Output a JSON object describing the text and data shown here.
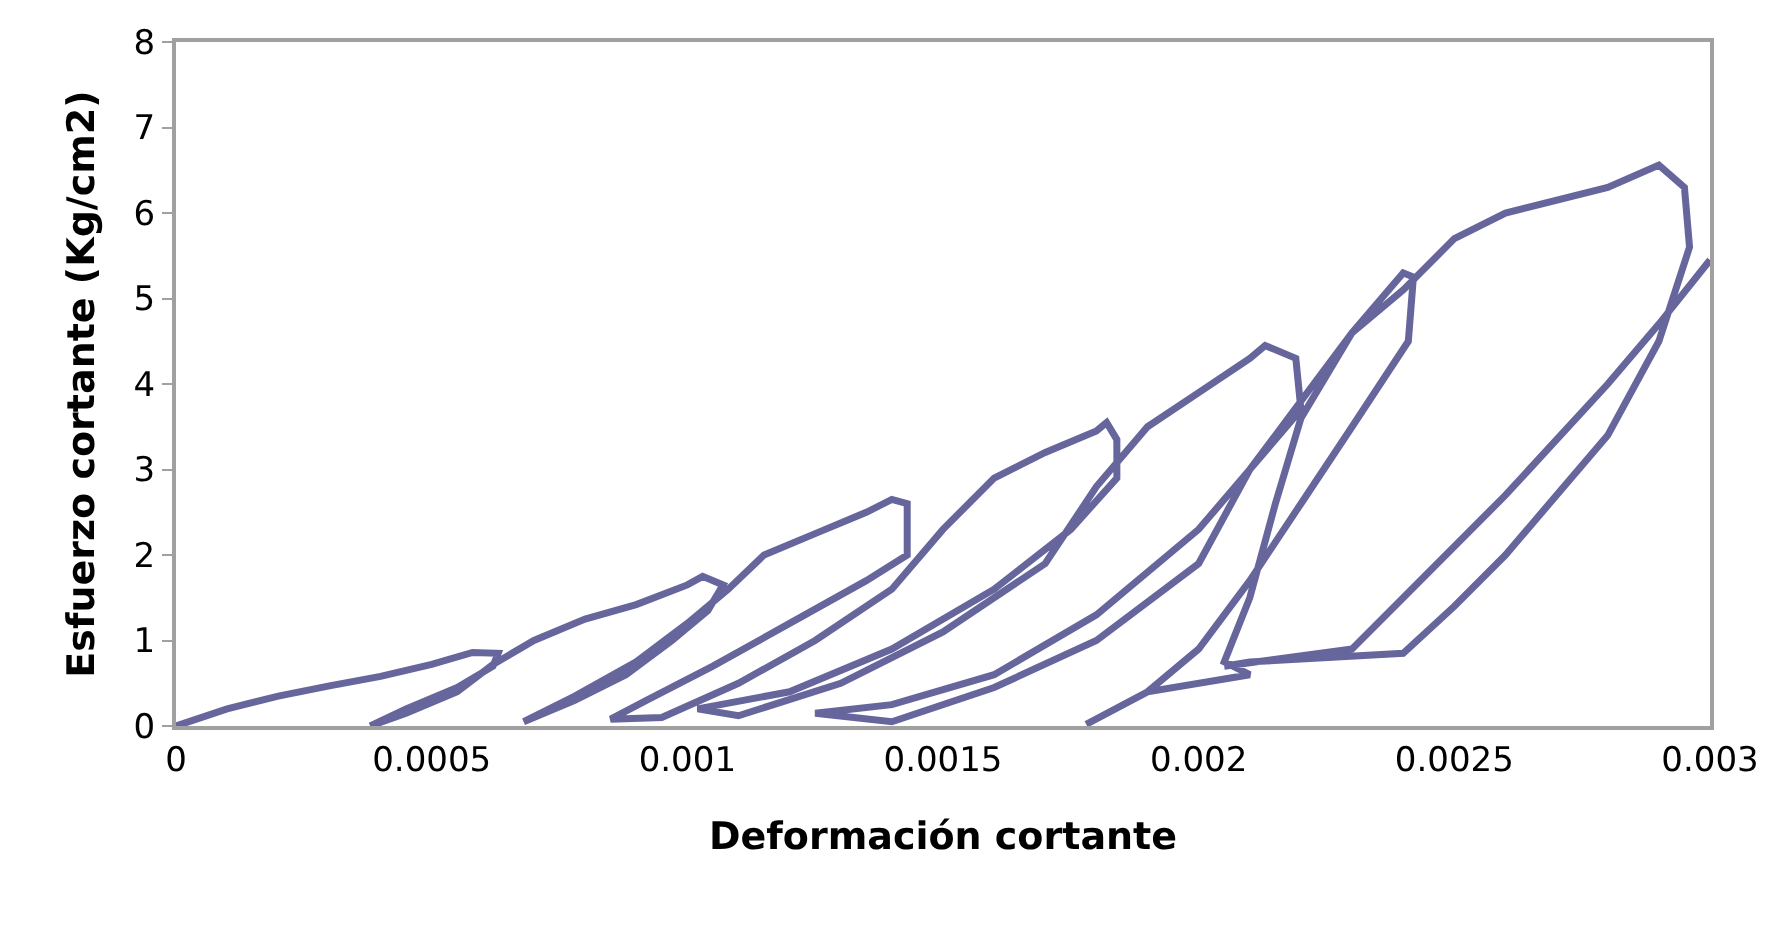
{
  "chart_data": {
    "type": "line",
    "xlabel": "Deformación cortante",
    "ylabel": "Esfuerzo cortante (Kg/cm2)",
    "xlim": [
      0,
      0.003
    ],
    "ylim": [
      0,
      8
    ],
    "xticks": [
      0,
      0.0005,
      0.001,
      0.0015,
      0.002,
      0.0025,
      0.003
    ],
    "yticks": [
      0,
      1,
      2,
      3,
      4,
      5,
      6,
      7,
      8
    ],
    "marker": "none",
    "line_style": "solid",
    "series": [
      {
        "color": "#66669c",
        "x": [
          0,
          0.0001,
          0.0002,
          0.0003,
          0.0004,
          0.0005,
          0.00058,
          0.00063,
          0.00062,
          0.00055,
          0.00045,
          0.00038,
          0.00045,
          0.00055,
          0.00062,
          0.0007,
          0.0008,
          0.0009,
          0.001,
          0.00103,
          0.00107,
          0.00104,
          0.00097,
          0.00088,
          0.00078,
          0.00068,
          0.00078,
          0.0009,
          0.001,
          0.00108,
          0.00115,
          0.00125,
          0.00135,
          0.0014,
          0.00143,
          0.00143,
          0.00135,
          0.0012,
          0.00105,
          0.00092,
          0.00085,
          0.00095,
          0.0011,
          0.00125,
          0.0014,
          0.0015,
          0.0016,
          0.0017,
          0.0018,
          0.00182,
          0.00184,
          0.00184,
          0.00175,
          0.0016,
          0.0014,
          0.0012,
          0.00102,
          0.0011,
          0.0013,
          0.0015,
          0.0017,
          0.0018,
          0.0019,
          0.002,
          0.0021,
          0.00213,
          0.00219,
          0.0022,
          0.0021,
          0.002,
          0.0018,
          0.0016,
          0.0014,
          0.00125,
          0.0014,
          0.0016,
          0.0018,
          0.002,
          0.0021,
          0.0022,
          0.0023,
          0.0024,
          0.00242,
          0.00241,
          0.0023,
          0.0022,
          0.0021,
          0.002,
          0.0019,
          0.00178,
          0.0019,
          0.0021,
          0.00205,
          0.0021,
          0.00215,
          0.0022,
          0.0023,
          0.0024,
          0.0025,
          0.0026,
          0.0028,
          0.0029,
          0.00295,
          0.00296,
          0.0029,
          0.0028,
          0.0026,
          0.0025,
          0.0024,
          0.0021,
          0.00205,
          0.0023,
          0.0024,
          0.0026,
          0.0028,
          0.0029,
          0.003
        ],
        "values": [
          0,
          0.2,
          0.35,
          0.47,
          0.58,
          0.72,
          0.86,
          0.85,
          0.7,
          0.45,
          0.2,
          0,
          0.15,
          0.4,
          0.72,
          1.0,
          1.25,
          1.42,
          1.65,
          1.75,
          1.65,
          1.35,
          1.0,
          0.6,
          0.3,
          0.05,
          0.35,
          0.75,
          1.2,
          1.6,
          2.0,
          2.25,
          2.5,
          2.65,
          2.6,
          2.0,
          1.7,
          1.2,
          0.7,
          0.3,
          0.08,
          0.1,
          0.5,
          1.0,
          1.6,
          2.3,
          2.9,
          3.2,
          3.45,
          3.55,
          3.35,
          2.9,
          2.3,
          1.6,
          0.9,
          0.4,
          0.2,
          0.12,
          0.5,
          1.1,
          1.9,
          2.8,
          3.5,
          3.9,
          4.3,
          4.45,
          4.3,
          3.7,
          3.0,
          2.3,
          1.3,
          0.6,
          0.25,
          0.15,
          0.05,
          0.45,
          1.0,
          1.9,
          3.0,
          3.8,
          4.6,
          5.3,
          5.25,
          4.5,
          3.5,
          2.6,
          1.7,
          0.9,
          0.4,
          0.02,
          0.4,
          0.6,
          0.75,
          1.5,
          2.6,
          3.6,
          4.6,
          5.1,
          5.7,
          6.0,
          6.3,
          6.56,
          6.3,
          5.6,
          4.5,
          3.4,
          2.0,
          1.4,
          0.85,
          0.75,
          0.7,
          0.9,
          1.5,
          2.7,
          4.0,
          4.7,
          5.45
        ]
      }
    ]
  }
}
